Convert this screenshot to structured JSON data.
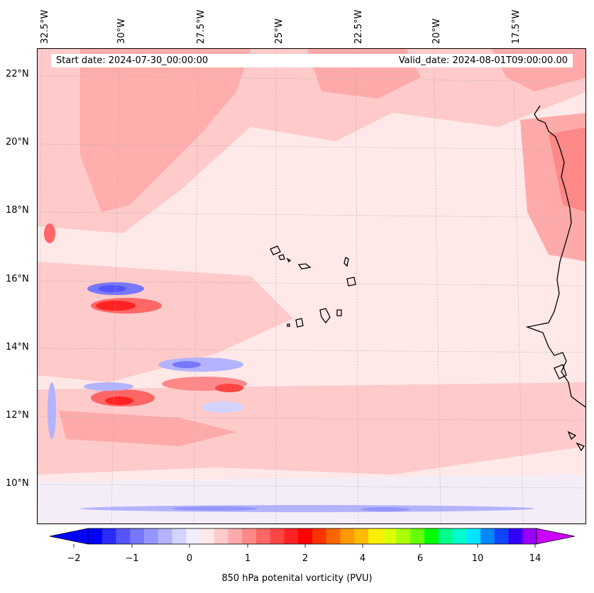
{
  "header": {
    "start_date": "Start date: 2024-07-30_00:00:00",
    "valid_date": "Valid_date: 2024-08-01T09:00:00.00"
  },
  "map": {
    "longitude_labels": [
      "32.5°W",
      "30°W",
      "27.5°W",
      "25°W",
      "22.5°W",
      "20°W",
      "17.5°W"
    ],
    "latitude_labels": [
      "22°N",
      "20°N",
      "18°N",
      "16°N",
      "14°N",
      "12°N",
      "10°N"
    ],
    "background_color": "#ffe8e8",
    "coastline_color": "#000000"
  },
  "colorbar": {
    "label": "850 hPa potenital vorticity (PVU)",
    "ticks": [
      "−2",
      "−1",
      "0",
      "1",
      "2",
      "4",
      "6",
      "10",
      "14"
    ],
    "colors": [
      "#0000ff",
      "#2a2aff",
      "#5555ff",
      "#7777ff",
      "#9595ff",
      "#b3b3ff",
      "#d3d3ff",
      "#efefff",
      "#ffe8e8",
      "#ffcaca",
      "#ffaaaa",
      "#ff8888",
      "#ff6666",
      "#ff4444",
      "#ff2222",
      "#ff0000",
      "#ff3300",
      "#ff6600",
      "#ff9900",
      "#ffbb00",
      "#ffee00",
      "#ddff00",
      "#aaff00",
      "#66ff00",
      "#00ff00",
      "#00ff88",
      "#00ffcc",
      "#00e5ff",
      "#0088ff",
      "#1144ff",
      "#3300ff",
      "#9900ff"
    ],
    "under_color": "#0000ff",
    "over_color": "#cc00ff"
  }
}
